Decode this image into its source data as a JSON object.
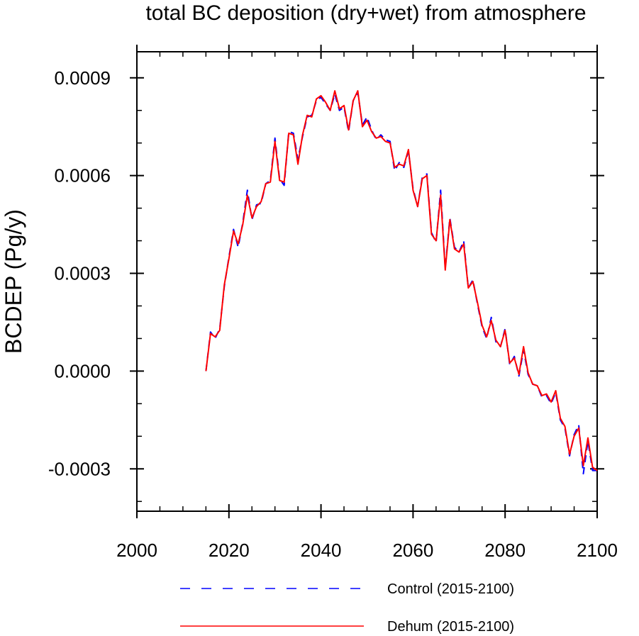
{
  "chart_data": {
    "type": "line",
    "title": "total BC deposition (dry+wet) from atmosphere",
    "ylabel": "BCDEP  (Pg/y)",
    "xlabel": "",
    "xlim": [
      2000,
      2100
    ],
    "ylim": [
      -0.00043,
      0.00098
    ],
    "x_ticks": [
      2000,
      2020,
      2040,
      2060,
      2080,
      2100
    ],
    "x_tick_labels": [
      "2000",
      "2020",
      "2040",
      "2060",
      "2080",
      "2100"
    ],
    "y_ticks": [
      -0.0003,
      0.0,
      0.0003,
      0.0006,
      0.0009
    ],
    "y_tick_labels": [
      "-0.0003",
      "0.0000",
      "0.0003",
      "0.0006",
      "0.0009"
    ],
    "grid": false,
    "legend_position": "bottom",
    "x": [
      2015,
      2016,
      2017,
      2018,
      2019,
      2020,
      2021,
      2022,
      2023,
      2024,
      2025,
      2026,
      2027,
      2028,
      2029,
      2030,
      2031,
      2032,
      2033,
      2034,
      2035,
      2036,
      2037,
      2038,
      2039,
      2040,
      2041,
      2042,
      2043,
      2044,
      2045,
      2046,
      2047,
      2048,
      2049,
      2050,
      2051,
      2052,
      2053,
      2054,
      2055,
      2056,
      2057,
      2058,
      2059,
      2060,
      2061,
      2062,
      2063,
      2064,
      2065,
      2066,
      2067,
      2068,
      2069,
      2070,
      2071,
      2072,
      2073,
      2074,
      2075,
      2076,
      2077,
      2078,
      2079,
      2080,
      2081,
      2082,
      2083,
      2084,
      2085,
      2086,
      2087,
      2088,
      2089,
      2090,
      2091,
      2092,
      2093,
      2094,
      2095,
      2096,
      2097,
      2098,
      2099,
      2100
    ],
    "series": [
      {
        "name": "Control (2015-2100)",
        "color": "#0000ff",
        "dash": "dashed",
        "values": [
          0.0,
          0.00012,
          0.0001,
          0.00013,
          0.00026,
          0.00035,
          0.000435,
          0.00038,
          0.000455,
          0.000555,
          0.000465,
          0.00051,
          0.000515,
          0.000575,
          0.000585,
          0.000715,
          0.00059,
          0.00057,
          0.000735,
          0.00073,
          0.00065,
          0.00072,
          0.00078,
          0.000785,
          0.00083,
          0.00084,
          0.00082,
          0.0008,
          0.00085,
          0.0008,
          0.00081,
          0.000735,
          0.00083,
          0.000855,
          0.000755,
          0.00078,
          0.00074,
          0.00071,
          0.000725,
          0.00071,
          0.000705,
          0.000615,
          0.00064,
          0.000625,
          0.000675,
          0.00056,
          0.000505,
          0.000595,
          0.000605,
          0.000425,
          0.000395,
          0.000555,
          0.000315,
          0.00047,
          0.00038,
          0.000365,
          0.0004,
          0.000255,
          0.00028,
          0.000205,
          0.000135,
          0.0001,
          0.000165,
          9e-05,
          7.5e-05,
          0.00013,
          2e-05,
          4.5e-05,
          -1.5e-05,
          6.5e-05,
          -1e-05,
          -4e-05,
          -4.5e-05,
          -8e-05,
          -7.5e-05,
          -0.0001,
          -6.5e-05,
          -0.00015,
          -0.000175,
          -0.00026,
          -0.000195,
          -0.000165,
          -0.000315,
          -0.000215,
          -0.000305,
          -0.000305
        ]
      },
      {
        "name": "Dehum (2015-2100)",
        "color": "#ff0000",
        "dash": "solid",
        "values": [
          0.0,
          0.000115,
          0.000105,
          0.000125,
          0.000265,
          0.000345,
          0.00043,
          0.00039,
          0.00045,
          0.00054,
          0.00047,
          0.000505,
          0.00052,
          0.000575,
          0.00058,
          0.000705,
          0.000585,
          0.00058,
          0.00073,
          0.000725,
          0.000635,
          0.000725,
          0.000785,
          0.00078,
          0.000835,
          0.000845,
          0.000825,
          0.0008,
          0.00086,
          0.000805,
          0.000815,
          0.00074,
          0.00083,
          0.00086,
          0.00075,
          0.00077,
          0.000735,
          0.000715,
          0.00072,
          0.000705,
          0.0007,
          0.000625,
          0.000635,
          0.00063,
          0.00068,
          0.000555,
          0.000505,
          0.00059,
          0.0006,
          0.00042,
          0.0004,
          0.00054,
          0.00031,
          0.000465,
          0.000375,
          0.000365,
          0.00039,
          0.000255,
          0.000275,
          0.00021,
          0.00014,
          0.000105,
          0.000155,
          9.5e-05,
          7.5e-05,
          0.000125,
          2.5e-05,
          4e-05,
          -1e-05,
          7.5e-05,
          -5e-06,
          -4e-05,
          -4.5e-05,
          -7.5e-05,
          -7e-05,
          -9.5e-05,
          -6e-05,
          -0.000145,
          -0.00017,
          -0.000255,
          -0.0002,
          -0.000175,
          -0.00029,
          -0.000205,
          -0.000295,
          -0.000305
        ]
      }
    ]
  }
}
